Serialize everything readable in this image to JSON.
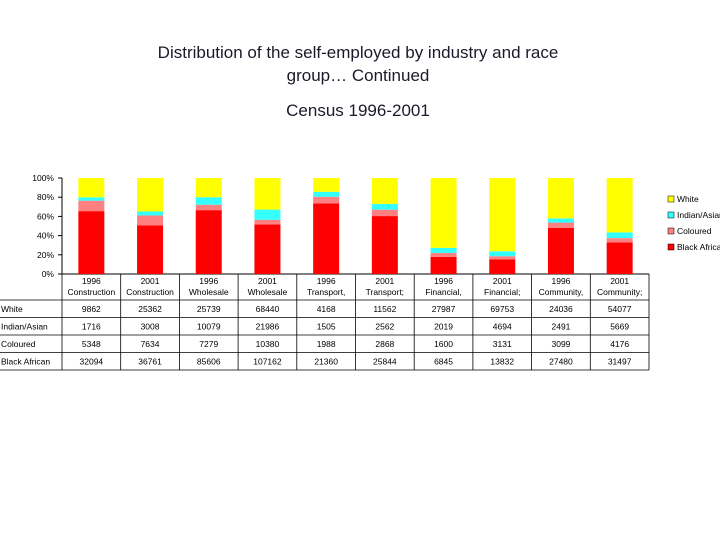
{
  "title_line1": "Distribution of the self-employed by industry and race",
  "title_line2": "group… Continued",
  "subtitle": "Census 1996-2001",
  "chart_data": {
    "type": "bar",
    "stacked": "percent",
    "ylim": [
      0,
      100
    ],
    "y_ticks": [
      "0%",
      "20%",
      "40%",
      "60%",
      "80%",
      "100%"
    ],
    "grid": false,
    "legend_position": "right",
    "categories": [
      {
        "year": "1996",
        "industry": "Construction"
      },
      {
        "year": "2001",
        "industry": "Construction"
      },
      {
        "year": "1996",
        "industry": "Wholesale"
      },
      {
        "year": "2001",
        "industry": "Wholesale"
      },
      {
        "year": "1996",
        "industry": "Transport,"
      },
      {
        "year": "2001",
        "industry": "Transport;"
      },
      {
        "year": "1996",
        "industry": "Financial,"
      },
      {
        "year": "2001",
        "industry": "Financial;"
      },
      {
        "year": "1996",
        "industry": "Community,"
      },
      {
        "year": "2001",
        "industry": "Community;"
      }
    ],
    "series": [
      {
        "name": "White",
        "color": "#ffff00",
        "values": [
          9862,
          25362,
          25739,
          68440,
          4168,
          11562,
          27987,
          69753,
          24036,
          54077
        ],
        "labels": [
          "9862",
          "25362",
          "25739",
          "68440",
          "4168",
          "11562",
          "27987",
          "69753",
          "24036",
          "54077"
        ]
      },
      {
        "name": "Indian/Asian",
        "color": "#33ffff",
        "values": [
          1716,
          3008,
          10079,
          21986,
          1505,
          2562,
          2019,
          4694,
          2491,
          5669
        ],
        "labels": [
          "1716",
          "3008",
          "10079",
          "21986",
          "1505",
          "2562",
          "2019",
          "4694",
          "2491",
          "5669"
        ]
      },
      {
        "name": "Coloured",
        "color": "#ff8080",
        "values": [
          5348,
          7634,
          7279,
          10380,
          1988,
          2868,
          1600,
          3131,
          3099,
          4176
        ],
        "labels": [
          "5348",
          "7634",
          "7279",
          "10380",
          "1988",
          "2868",
          "1600",
          "3131",
          "3099",
          "4176"
        ]
      },
      {
        "name": "Black African",
        "color": "#ff0000",
        "values": [
          32094,
          36761,
          85606,
          107162,
          21360,
          25844,
          6845,
          13832,
          27480,
          31497
        ],
        "labels": [
          "32094",
          "36761",
          "85606",
          "107162",
          "21360",
          "25844",
          "6845",
          "13832",
          "27480",
          "31497"
        ]
      }
    ]
  }
}
